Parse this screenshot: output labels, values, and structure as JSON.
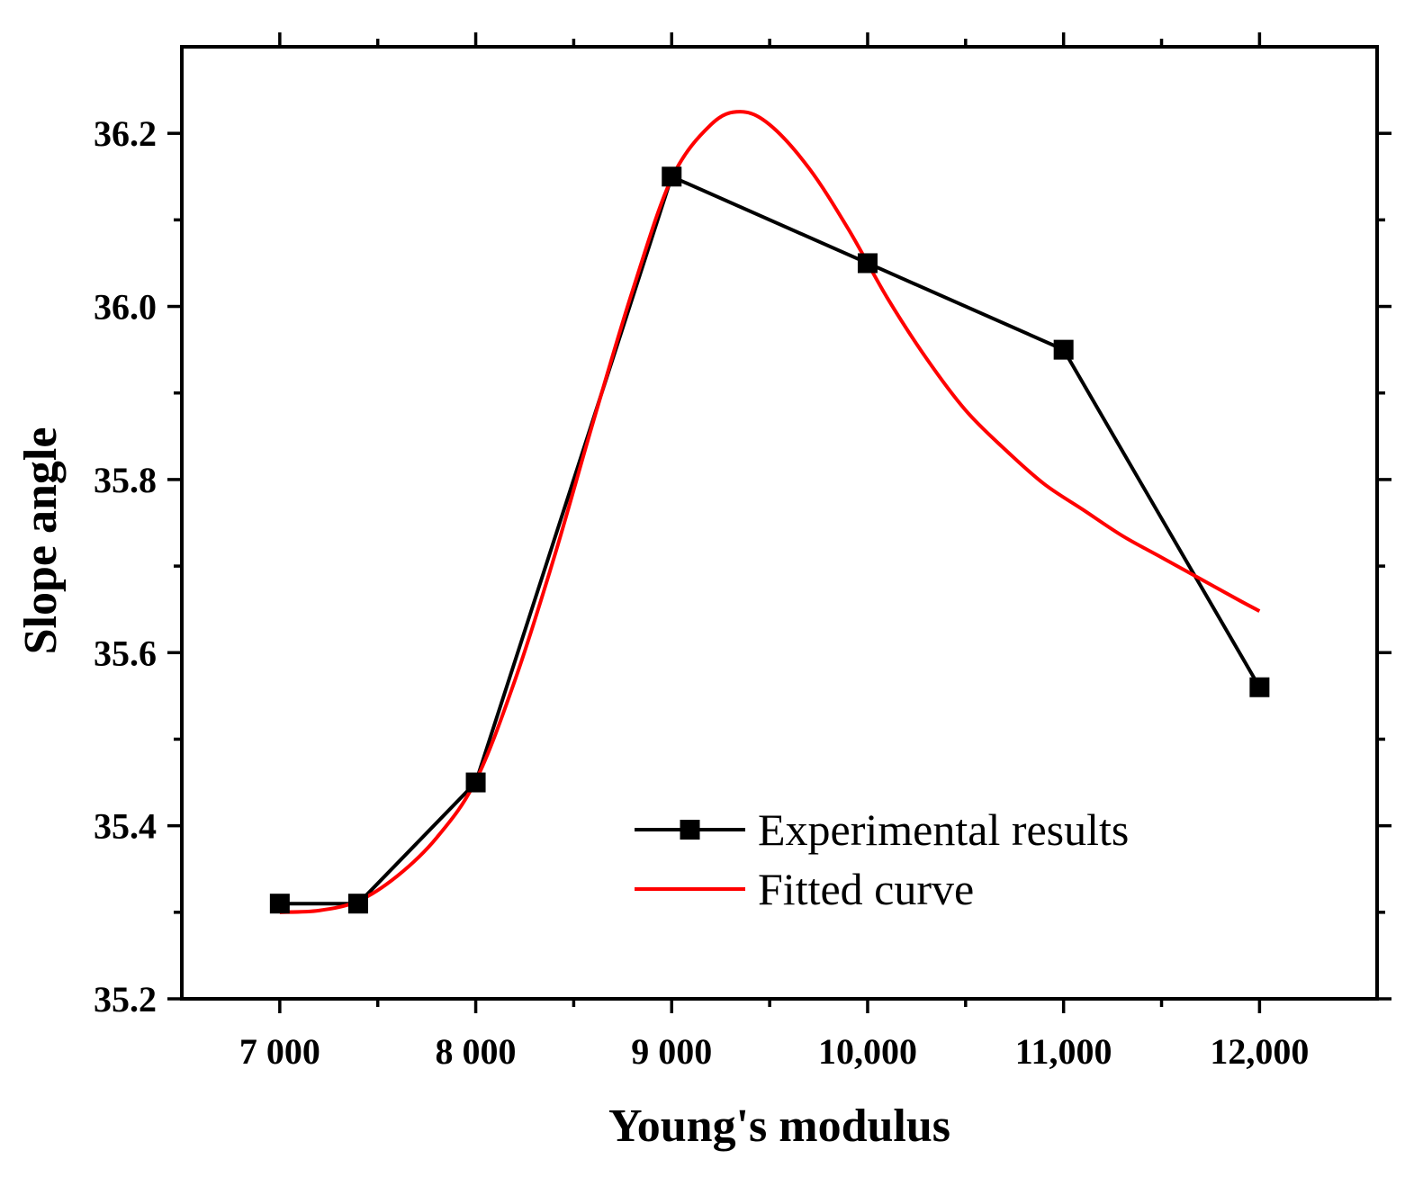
{
  "chart_data": {
    "type": "line",
    "title": "",
    "xlabel": "Young's modulus",
    "ylabel": "Slope angle",
    "xlim": [
      6500,
      12600
    ],
    "ylim": [
      35.2,
      36.3
    ],
    "x_ticks": [
      {
        "value": 7000,
        "label": "7 000"
      },
      {
        "value": 8000,
        "label": "8 000"
      },
      {
        "value": 9000,
        "label": "9 000"
      },
      {
        "value": 10000,
        "label": "10,000"
      },
      {
        "value": 11000,
        "label": "11,000"
      },
      {
        "value": 12000,
        "label": "12,000"
      }
    ],
    "x_minor_ticks": [
      7500,
      8500,
      9500,
      10500,
      11500
    ],
    "y_ticks": [
      {
        "value": 35.2,
        "label": "35.2"
      },
      {
        "value": 35.4,
        "label": "35.4"
      },
      {
        "value": 35.6,
        "label": "35.6"
      },
      {
        "value": 35.8,
        "label": "35.8"
      },
      {
        "value": 36.0,
        "label": "36.0"
      },
      {
        "value": 36.2,
        "label": "36.2"
      }
    ],
    "y_minor_ticks": [
      35.3,
      35.5,
      35.7,
      35.9,
      36.1
    ],
    "grid": false,
    "legend_position": "lower-right",
    "series": [
      {
        "name": "Experimental results",
        "kind": "line-markers",
        "color": "#000000",
        "marker": "square",
        "x": [
          7000,
          7400,
          8000,
          9000,
          10000,
          11000,
          12000
        ],
        "y": [
          35.31,
          35.31,
          35.45,
          36.15,
          36.05,
          35.95,
          35.56
        ]
      },
      {
        "name": "Fitted curve",
        "kind": "line",
        "color": "#ff0000",
        "x": [
          7000,
          7200,
          7400,
          7600,
          7800,
          8000,
          8200,
          8400,
          8600,
          8800,
          9000,
          9200,
          9350,
          9500,
          9700,
          9900,
          10100,
          10300,
          10500,
          10700,
          10900,
          11100,
          11300,
          11500,
          11700,
          11900,
          12000
        ],
        "y": [
          35.3,
          35.302,
          35.313,
          35.342,
          35.386,
          35.452,
          35.568,
          35.71,
          35.867,
          36.018,
          36.148,
          36.21,
          36.225,
          36.21,
          36.16,
          36.09,
          36.01,
          35.94,
          35.88,
          35.835,
          35.795,
          35.765,
          35.735,
          35.71,
          35.685,
          35.66,
          35.648
        ]
      }
    ]
  }
}
